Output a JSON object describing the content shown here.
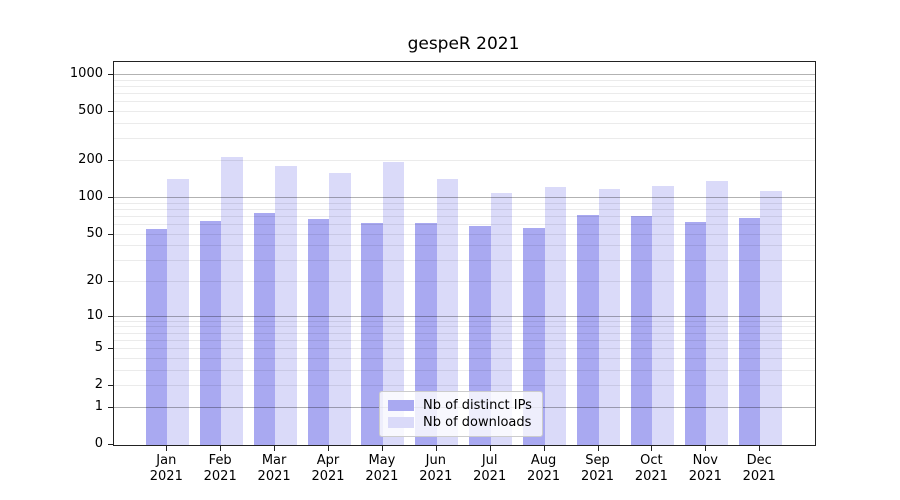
{
  "title": "gespeR 2021",
  "colors": {
    "ips_bar": "#a9a9f1",
    "downloads_bar": "#dadaf9",
    "axis": "#222222",
    "grid_major": "#b3b3b3",
    "grid_minor": "#ebebeb",
    "background": "#ffffff"
  },
  "legend": {
    "items": [
      {
        "label": "Nb of distinct IPs",
        "color": "#a9a9f1"
      },
      {
        "label": "Nb of downloads",
        "color": "#dadaf9"
      }
    ]
  },
  "chart_data": {
    "type": "bar",
    "title": "gespeR 2021",
    "categories": [
      "Jan 2021",
      "Feb 2021",
      "Mar 2021",
      "Apr 2021",
      "May 2021",
      "Jun 2021",
      "Jul 2021",
      "Aug 2021",
      "Sep 2021",
      "Oct 2021",
      "Nov 2021",
      "Dec 2021"
    ],
    "months": [
      "Jan",
      "Feb",
      "Mar",
      "Apr",
      "May",
      "Jun",
      "Jul",
      "Aug",
      "Sep",
      "Oct",
      "Nov",
      "Dec"
    ],
    "year": "2021",
    "series": [
      {
        "name": "Nb of distinct IPs",
        "key": "ips",
        "color": "#a9a9f1",
        "values": [
          56,
          65,
          75,
          67,
          62,
          62,
          59,
          57,
          73,
          71,
          64,
          68
        ]
      },
      {
        "name": "Nb of downloads",
        "key": "downloads",
        "color": "#dadaf9",
        "values": [
          144,
          215,
          184,
          161,
          196,
          142,
          110,
          123,
          118,
          125,
          137,
          114
        ]
      }
    ],
    "yscale": "log1p",
    "y_ticks": [
      0,
      1,
      2,
      5,
      10,
      20,
      50,
      100,
      200,
      500,
      1000
    ],
    "y_major_gridlines": [
      1,
      10,
      100,
      1000
    ],
    "ylim": [
      0,
      1250
    ],
    "xlabel": "",
    "ylabel": "",
    "grid": true,
    "legend_position": "lower center"
  }
}
